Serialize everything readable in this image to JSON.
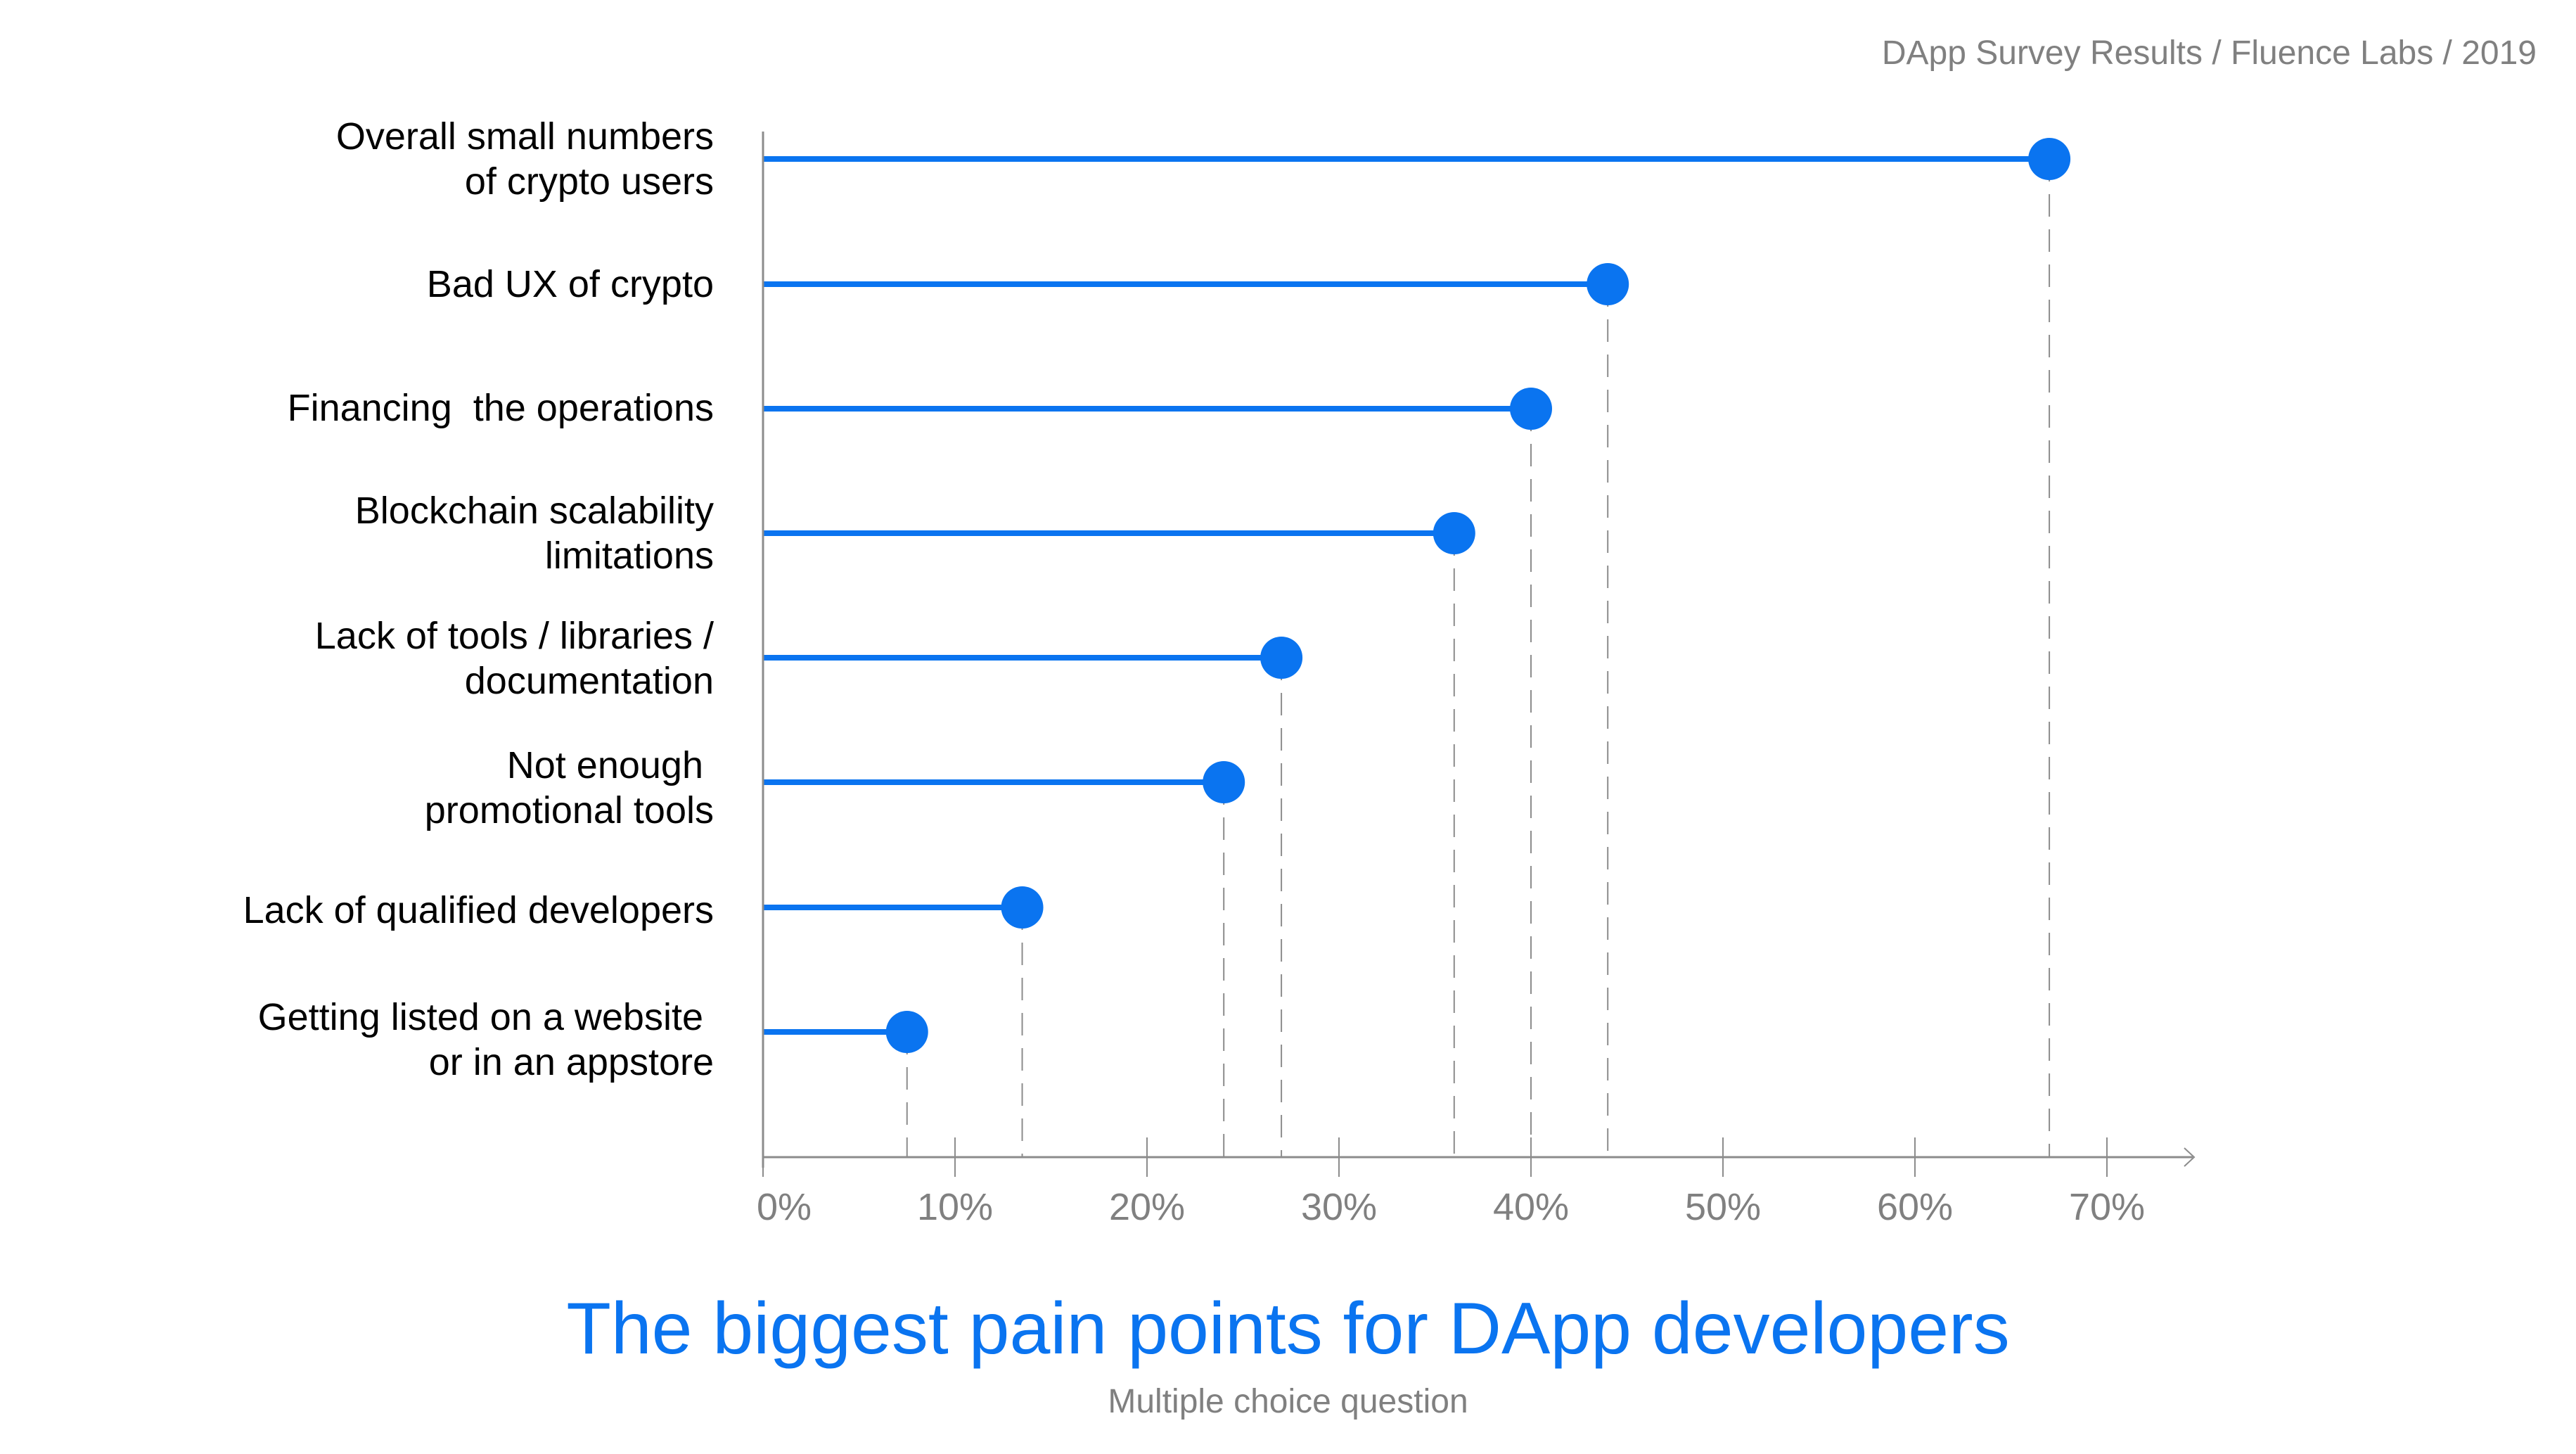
{
  "header": {
    "source": "DApp Survey Results / Fluence Labs / 2019"
  },
  "footer": {
    "title": "The biggest pain points for DApp developers",
    "subtitle": "Multiple choice question"
  },
  "colors": {
    "accent": "#0a74f0",
    "axis": "#8c8c8c",
    "guide": "#8c8c8c",
    "label": "#000000",
    "muted": "#808080"
  },
  "chart_data": {
    "type": "lollipop-horizontal-bar",
    "title": "The biggest pain points for DApp developers",
    "subtitle": "Multiple choice question",
    "source": "DApp Survey Results / Fluence Labs / 2019",
    "xlabel": "",
    "ylabel": "",
    "xlim": [
      0,
      70
    ],
    "x_ticks": [
      "0%",
      "10%",
      "20%",
      "30%",
      "40%",
      "50%",
      "60%",
      "70%"
    ],
    "grid": false,
    "legend": null,
    "categories": [
      "Overall small numbers\nof crypto users",
      "Bad UX of crypto",
      "Financing  the operations",
      "Blockchain scalability\nlimitations",
      "Lack of tools / libraries /\ndocumentation",
      "Not enough \npromotional tools",
      "Lack of qualified developers",
      "Getting listed on a website \nor in an appstore"
    ],
    "values": [
      67,
      44,
      40,
      36,
      27,
      24,
      13.5,
      7.5
    ],
    "unit": "%"
  }
}
